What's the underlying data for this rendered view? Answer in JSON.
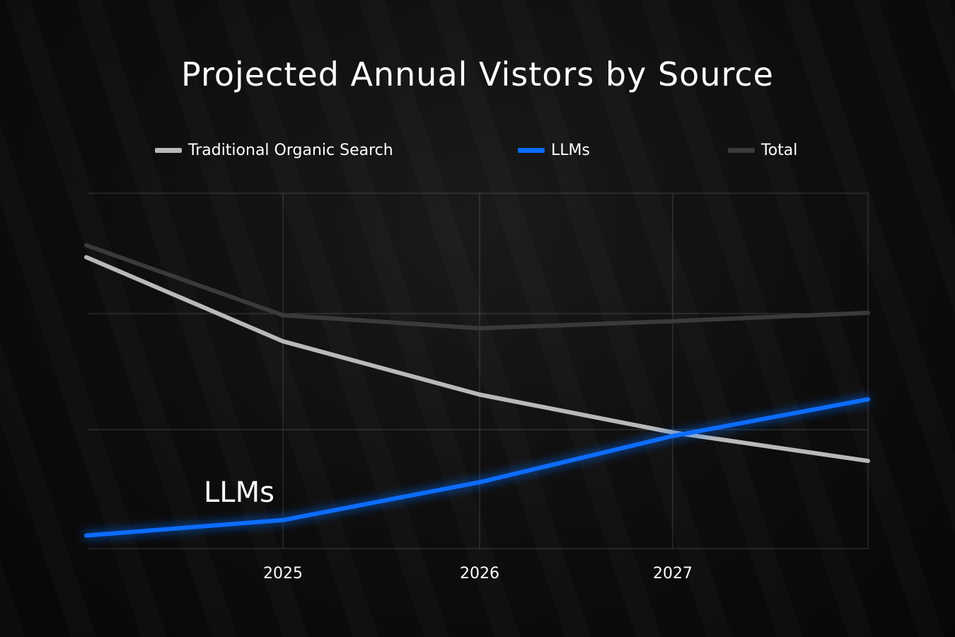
{
  "chart_data": {
    "type": "line",
    "title": "Projected Annual Vistors by Source",
    "xlabel": "",
    "ylabel": "",
    "x_ticks": [
      "2025",
      "2026",
      "2027"
    ],
    "grid": true,
    "legend_position": "top",
    "series": [
      {
        "name": "Traditional Organic Search",
        "color": "#b9b9b9",
        "values": [
          2.46,
          1.75,
          1.3,
          0.98,
          0.74
        ]
      },
      {
        "name": "LLMs",
        "color": "#0a6cff",
        "values": [
          0.11,
          0.24,
          0.56,
          0.95,
          1.26
        ],
        "inline_label": "LLMs"
      },
      {
        "name": "Total",
        "color": "#3a3a3a",
        "values": [
          2.56,
          1.97,
          1.86,
          1.92,
          1.99
        ]
      }
    ],
    "ylim": [
      0,
      3
    ]
  }
}
